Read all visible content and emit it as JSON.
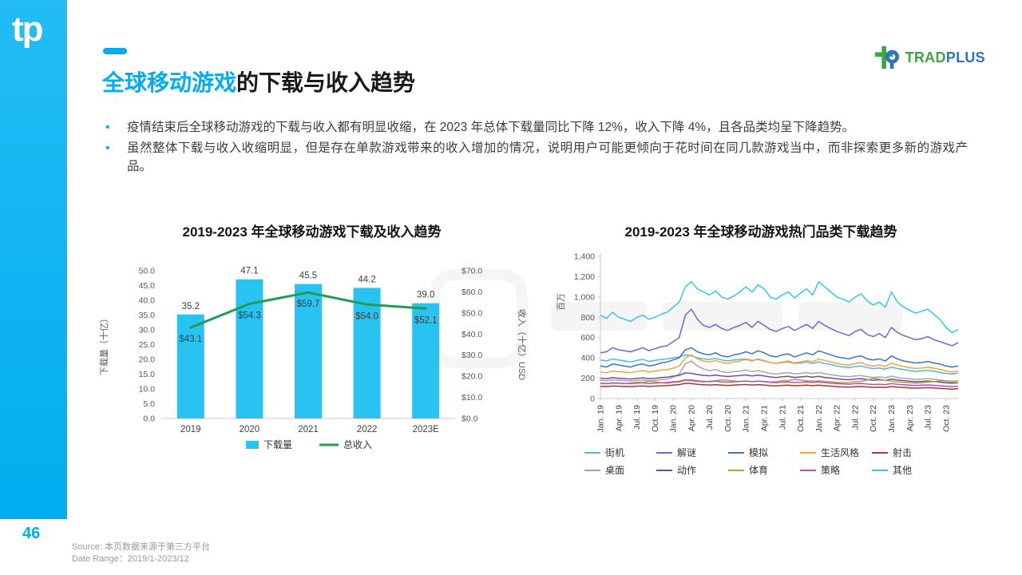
{
  "page": {
    "number": "46",
    "source_line1": "Source: 本页数据来源于第三方平台",
    "source_line2": "Date Range：2019/1-2023/12"
  },
  "branding": {
    "sidebar_logo": "tp",
    "logo_trad": "TRAD",
    "logo_plus": "PLUS"
  },
  "header": {
    "title_highlight": "全球移动游戏",
    "title_rest": "的下载与收入趋势"
  },
  "bullets": [
    "疫情结束后全球移动游戏的下载与收入都有明显收缩，在 2023 年总体下载量同比下降 12%，收入下降 4%，且各品类均呈下降趋势。",
    "虽然整体下载与收入收缩明显，但是存在单款游戏带来的收入增加的情况，说明用户可能更倾向于花时间在同几款游戏当中，而非探索更多新的游戏产品。"
  ],
  "colors": {
    "accent": "#00AEEF",
    "bar": "#29C3F2",
    "revenue_line": "#1F9D55",
    "logo_green": "#3FA63F",
    "logo_blue": "#2E74C0"
  },
  "chart_data": [
    {
      "type": "combo",
      "title": "2019-2023 年全球移动游戏下载及收入趋势",
      "categories": [
        "2019",
        "2020",
        "2021",
        "2022",
        "2023E"
      ],
      "series": [
        {
          "name": "下载量",
          "chart": "bar",
          "axis": "left",
          "color": "#29C3F2",
          "values": [
            35.2,
            47.1,
            45.5,
            44.2,
            39.0
          ],
          "labels": [
            "35.2",
            "47.1",
            "45.5",
            "44.2",
            "39.0"
          ]
        },
        {
          "name": "总收入",
          "chart": "line",
          "axis": "right",
          "color": "#1F9D55",
          "values": [
            43.1,
            54.3,
            59.7,
            54.0,
            52.1
          ],
          "labels": [
            "$43.1",
            "$54.3",
            "$59.7",
            "$54.0",
            "$52.1"
          ]
        }
      ],
      "left_axis": {
        "label": "下载量（十亿）",
        "min": 0,
        "max": 50,
        "ticks": [
          "0.0",
          "5.0",
          "10.0",
          "15.0",
          "20.0",
          "25.0",
          "30.0",
          "35.0",
          "40.0",
          "45.0",
          "50.0"
        ]
      },
      "right_axis": {
        "label": "收入（十亿）USD",
        "min": 0,
        "max": 70,
        "ticks": [
          "$0.0",
          "$10.0",
          "$20.0",
          "$30.0",
          "$40.0",
          "$50.0",
          "$60.0",
          "$70.0"
        ]
      }
    },
    {
      "type": "line",
      "title": "2019-2023 年全球移动游戏热门品类下载趋势",
      "ylabel": "百万",
      "ylim": [
        0,
        1400
      ],
      "yticks": [
        "0",
        "200",
        "400",
        "600",
        "800",
        "1,000",
        "1,200",
        "1,400"
      ],
      "xticks": [
        "Jan. 19",
        "Apr. 19",
        "Jul. 19",
        "Oct. 19",
        "Jan. 20",
        "Apr. 20",
        "Jul. 20",
        "Oct. 20",
        "Jan. 21",
        "Apr. 21",
        "Jul. 21",
        "Oct. 21",
        "Jan. 22",
        "Apr. 22",
        "Jul. 22",
        "Oct. 22",
        "Jan. 23",
        "Apr. 23",
        "Jul. 23",
        "Oct. 23"
      ],
      "x_unit": "month",
      "points_per_series": 60,
      "series": [
        {
          "name": "街机",
          "color": "#4FB7E8",
          "values": [
            380,
            370,
            390,
            380,
            370,
            360,
            375,
            385,
            365,
            375,
            385,
            390,
            400,
            410,
            430,
            420,
            400,
            390,
            385,
            395,
            380,
            370,
            380,
            385,
            390,
            375,
            385,
            370,
            355,
            345,
            355,
            360,
            345,
            350,
            360,
            345,
            360,
            345,
            335,
            320,
            310,
            305,
            315,
            320,
            305,
            295,
            300,
            290,
            310,
            295,
            285,
            275,
            268,
            272,
            278,
            268,
            258,
            248,
            242,
            250
          ]
        },
        {
          "name": "解谜",
          "color": "#6A67D9",
          "values": [
            450,
            460,
            500,
            480,
            470,
            460,
            480,
            500,
            470,
            490,
            510,
            520,
            560,
            600,
            820,
            880,
            780,
            720,
            700,
            730,
            690,
            670,
            700,
            720,
            750,
            700,
            760,
            720,
            680,
            660,
            690,
            710,
            670,
            700,
            730,
            690,
            760,
            720,
            690,
            660,
            640,
            620,
            660,
            680,
            630,
            610,
            640,
            600,
            700,
            650,
            620,
            600,
            580,
            590,
            610,
            580,
            560,
            540,
            520,
            550
          ]
        },
        {
          "name": "模拟",
          "color": "#3D74C6",
          "values": [
            320,
            310,
            340,
            330,
            320,
            310,
            330,
            340,
            320,
            330,
            350,
            360,
            380,
            400,
            480,
            500,
            460,
            440,
            430,
            450,
            420,
            410,
            430,
            440,
            460,
            440,
            470,
            450,
            420,
            410,
            430,
            440,
            410,
            430,
            450,
            430,
            470,
            450,
            430,
            410,
            400,
            390,
            410,
            420,
            390,
            380,
            390,
            370,
            420,
            390,
            370,
            360,
            350,
            355,
            365,
            350,
            340,
            320,
            310,
            320
          ]
        },
        {
          "name": "生活风格",
          "color": "#F0A83C",
          "values": [
            260,
            255,
            270,
            265,
            260,
            255,
            265,
            275,
            260,
            270,
            280,
            285,
            300,
            320,
            400,
            430,
            390,
            370,
            360,
            375,
            355,
            345,
            360,
            370,
            385,
            370,
            390,
            375,
            355,
            345,
            360,
            370,
            350,
            360,
            375,
            360,
            390,
            375,
            360,
            345,
            335,
            330,
            345,
            355,
            330,
            320,
            330,
            315,
            350,
            330,
            315,
            305,
            295,
            300,
            310,
            298,
            288,
            272,
            262,
            270
          ]
        },
        {
          "name": "射击",
          "color": "#A23C32",
          "values": [
            120,
            118,
            123,
            121,
            119,
            117,
            121,
            124,
            119,
            122,
            125,
            127,
            133,
            137,
            150,
            147,
            140,
            136,
            133,
            137,
            132,
            129,
            132,
            135,
            138,
            133,
            137,
            133,
            127,
            124,
            129,
            131,
            126,
            128,
            131,
            127,
            131,
            126,
            122,
            117,
            114,
            112,
            116,
            119,
            113,
            110,
            112,
            109,
            118,
            112,
            108,
            105,
            102,
            104,
            107,
            103,
            100,
            96,
            93,
            96
          ]
        },
        {
          "name": "桌面",
          "color": "#A6A6A6",
          "values": [
            180,
            175,
            185,
            180,
            175,
            172,
            178,
            183,
            175,
            180,
            186,
            190,
            210,
            240,
            340,
            370,
            320,
            290,
            275,
            285,
            265,
            255,
            265,
            270,
            280,
            265,
            275,
            262,
            248,
            240,
            250,
            256,
            242,
            248,
            256,
            246,
            256,
            244,
            235,
            225,
            218,
            214,
            222,
            226,
            215,
            208,
            212,
            205,
            220,
            208,
            200,
            194,
            188,
            190,
            196,
            190,
            183,
            175,
            170,
            175
          ]
        },
        {
          "name": "动作",
          "color": "#7A49A5",
          "values": [
            200,
            196,
            205,
            200,
            196,
            192,
            198,
            204,
            196,
            200,
            206,
            210,
            220,
            228,
            252,
            248,
            236,
            228,
            224,
            230,
            222,
            216,
            222,
            226,
            232,
            222,
            230,
            222,
            212,
            206,
            214,
            218,
            208,
            212,
            218,
            210,
            218,
            208,
            202,
            194,
            188,
            185,
            192,
            196,
            186,
            180,
            184,
            178,
            192,
            182,
            176,
            170,
            166,
            168,
            172,
            167,
            161,
            154,
            150,
            154
          ]
        },
        {
          "name": "体育",
          "color": "#B3A33B",
          "values": [
            150,
            146,
            152,
            150,
            148,
            152,
            160,
            158,
            170,
            165,
            155,
            150,
            158,
            162,
            180,
            175,
            168,
            164,
            170,
            175,
            185,
            180,
            172,
            168,
            172,
            166,
            172,
            168,
            162,
            166,
            175,
            178,
            188,
            182,
            174,
            170,
            174,
            168,
            164,
            160,
            156,
            158,
            165,
            170,
            180,
            200,
            190,
            178,
            172,
            164,
            160,
            156,
            152,
            155,
            162,
            166,
            175,
            170,
            162,
            158
          ]
        },
        {
          "name": "策略",
          "color": "#C04BC0",
          "values": [
            150,
            148,
            153,
            151,
            149,
            147,
            151,
            154,
            149,
            152,
            156,
            158,
            165,
            170,
            185,
            182,
            174,
            169,
            166,
            171,
            165,
            161,
            165,
            168,
            172,
            166,
            171,
            166,
            159,
            156,
            161,
            164,
            157,
            160,
            164,
            159,
            164,
            157,
            152,
            147,
            143,
            141,
            146,
            149,
            142,
            138,
            141,
            137,
            147,
            140,
            136,
            132,
            129,
            131,
            134,
            130,
            126,
            121,
            118,
            121
          ]
        },
        {
          "name": "其他",
          "color": "#33C6EF",
          "values": [
            820,
            790,
            850,
            800,
            780,
            760,
            800,
            820,
            780,
            800,
            830,
            850,
            900,
            950,
            1100,
            1150,
            1080,
            1050,
            1020,
            1060,
            1000,
            980,
            1010,
            1050,
            1100,
            1050,
            1120,
            1080,
            1000,
            980,
            1020,
            1050,
            990,
            1040,
            1080,
            1020,
            1150,
            1100,
            1050,
            1000,
            980,
            950,
            1000,
            1030,
            960,
            920,
            950,
            900,
            1050,
            950,
            900,
            870,
            840,
            860,
            880,
            830,
            780,
            700,
            650,
            680
          ]
        }
      ]
    }
  ]
}
